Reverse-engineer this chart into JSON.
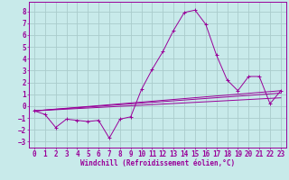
{
  "xlabel": "Windchill (Refroidissement éolien,°C)",
  "bg_color": "#c8eaea",
  "line_color": "#990099",
  "grid_color": "#aacccc",
  "xlim": [
    -0.5,
    23.5
  ],
  "ylim": [
    -3.5,
    8.8
  ],
  "xticks": [
    0,
    1,
    2,
    3,
    4,
    5,
    6,
    7,
    8,
    9,
    10,
    11,
    12,
    13,
    14,
    15,
    16,
    17,
    18,
    19,
    20,
    21,
    22,
    23
  ],
  "yticks": [
    -3,
    -2,
    -1,
    0,
    1,
    2,
    3,
    4,
    5,
    6,
    7,
    8
  ],
  "series1": {
    "x": [
      0,
      1,
      2,
      3,
      4,
      5,
      6,
      7,
      8,
      9,
      10,
      11,
      12,
      13,
      14,
      15,
      16,
      17,
      18,
      19,
      20,
      21,
      22,
      23
    ],
    "y": [
      -0.4,
      -0.7,
      -1.8,
      -1.1,
      -1.2,
      -1.3,
      -1.2,
      -2.7,
      -1.1,
      -0.9,
      1.4,
      3.1,
      4.6,
      6.4,
      7.9,
      8.1,
      6.9,
      4.3,
      2.2,
      1.3,
      2.5,
      2.5,
      0.2,
      1.3
    ]
  },
  "series2": {
    "x": [
      0,
      23
    ],
    "y": [
      -0.4,
      1.3
    ]
  },
  "series3": {
    "x": [
      0,
      23
    ],
    "y": [
      -0.4,
      1.1
    ]
  },
  "series4": {
    "x": [
      0,
      23
    ],
    "y": [
      -0.4,
      0.7
    ]
  },
  "tick_fontsize": 5.5,
  "xlabel_fontsize": 5.5
}
